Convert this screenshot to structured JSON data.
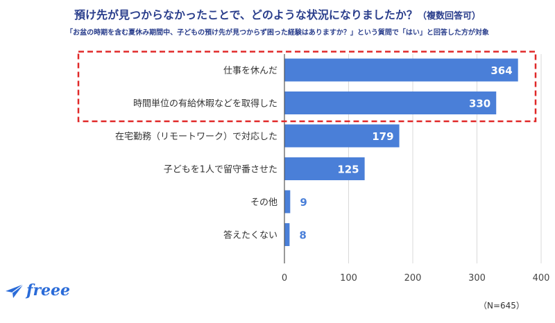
{
  "title": "預け先が見つからなかったことで、どのような状況になりましたか？",
  "title_suffix": "（複数回答可）",
  "subtitle": "「お盆の時期を含む夏休み期間中、子どもの預け先が見つからず困った経験はありますか？」という質問で「はい」と回答した方が対象",
  "brand": "freee",
  "note": "（N=645）",
  "chart_data": {
    "type": "bar",
    "orientation": "horizontal",
    "categories": [
      "仕事を休んだ",
      "時間単位の有給休暇などを取得した",
      "在宅勤務（リモートワーク）で対応した",
      "子どもを1人で留守番させた",
      "その他",
      "答えたくない"
    ],
    "values": [
      364,
      330,
      179,
      125,
      9,
      8
    ],
    "xlim": [
      0,
      400
    ],
    "ticks": [
      0,
      100,
      200,
      300,
      400
    ],
    "grid": true,
    "highlighted_categories": [
      "仕事を休んだ",
      "時間単位の有給休暇などを取得した"
    ],
    "colors": {
      "bar": "#4a7fd8",
      "highlight_box": "#e02828",
      "title": "#2a3e8c",
      "brand": "#2a6bd8"
    }
  }
}
